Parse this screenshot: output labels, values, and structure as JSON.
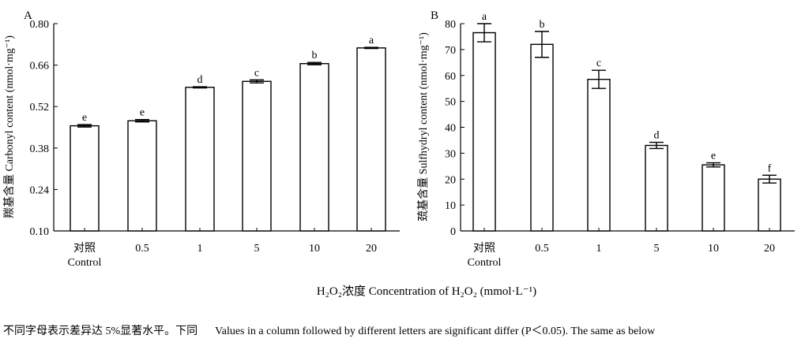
{
  "chart_data": [
    {
      "type": "bar",
      "panel": "A",
      "ylabel": "羰基含量 Carbonyl content (nmol·mg⁻¹)",
      "ylim": [
        0.1,
        0.8
      ],
      "yticks": [
        "0.10",
        "0.24",
        "0.38",
        "0.52",
        "0.66",
        "0.80"
      ],
      "categories": [
        [
          "对照",
          "Control"
        ],
        [
          "0.5"
        ],
        [
          "1"
        ],
        [
          "5"
        ],
        [
          "10"
        ],
        [
          "20"
        ]
      ],
      "values": [
        0.455,
        0.472,
        0.585,
        0.605,
        0.665,
        0.718
      ],
      "errors": [
        0.004,
        0.004,
        0.002,
        0.005,
        0.004,
        0.002
      ],
      "letters": [
        "e",
        "e",
        "d",
        "c",
        "b",
        "a"
      ]
    },
    {
      "type": "bar",
      "panel": "B",
      "ylabel": "巯基含量 Sulfhydryl content (nmol·mg⁻¹)",
      "ylim": [
        0,
        80
      ],
      "yticks": [
        "0",
        "10",
        "20",
        "30",
        "40",
        "50",
        "60",
        "70",
        "80"
      ],
      "categories": [
        [
          "对照",
          "Control"
        ],
        [
          "0.5"
        ],
        [
          "1"
        ],
        [
          "5"
        ],
        [
          "10"
        ],
        [
          "20"
        ]
      ],
      "values": [
        76.5,
        72.0,
        58.5,
        33.0,
        25.5,
        20.0
      ],
      "errors": [
        3.5,
        5.0,
        3.5,
        1.2,
        0.8,
        1.5
      ],
      "letters": [
        "a",
        "b",
        "c",
        "d",
        "e",
        "f"
      ]
    }
  ],
  "xlabel": "H₂O₂浓度 Concentration of H₂O₂ (mmol·L⁻¹)",
  "caption": {
    "cn": "不同字母表示差异达 5%显著水平。下同",
    "en": "Values in a column followed by different letters are significant differ (P＜0.05). The same as below"
  }
}
